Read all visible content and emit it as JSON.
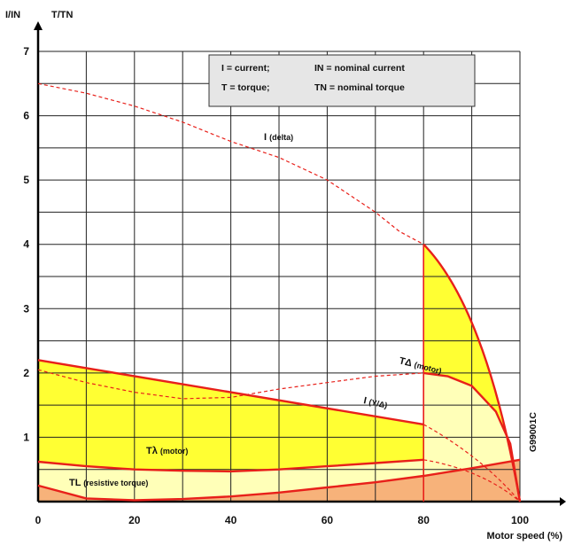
{
  "chart_data": {
    "type": "line",
    "title": "",
    "xlabel": "Motor speed (%)",
    "ylabel_left": "I/IN",
    "ylabel_right": "T/TN",
    "xlim": [
      0,
      100
    ],
    "ylim": [
      0,
      7
    ],
    "x_ticks": [
      "0",
      "20",
      "40",
      "60",
      "80",
      "100"
    ],
    "y_ticks": [
      "1",
      "2",
      "3",
      "4",
      "5",
      "6",
      "7"
    ],
    "grid": true,
    "legend": {
      "placement": "top-right",
      "entries": [
        [
          "I = current;",
          "IN = nominal current"
        ],
        [
          "T = torque;",
          "TN = nominal torque"
        ]
      ]
    },
    "side_code": "G99001C",
    "colors": {
      "motor_curve": "#e8201a",
      "current_dash": "#e8201a",
      "yellow_fill": "#ffff33",
      "pale_fill": "#ffffb8",
      "orange_fill": "#f7b27a"
    },
    "series": [
      {
        "name": "I (delta)",
        "label_main": "I",
        "label_sub": "(delta)",
        "style": "dashed",
        "x": [
          0,
          10,
          20,
          30,
          40,
          50,
          60,
          70,
          75,
          80
        ],
        "y": [
          6.5,
          6.35,
          6.15,
          5.9,
          5.6,
          5.35,
          5.0,
          4.5,
          4.2,
          4.0
        ]
      },
      {
        "name": "TΔ (motor)",
        "label_main": "TΔ",
        "label_sub": "(motor)",
        "style": "solid",
        "x": [
          80,
          85,
          90,
          95,
          98,
          100
        ],
        "y": [
          2.0,
          1.95,
          1.8,
          1.4,
          0.9,
          0.0
        ]
      },
      {
        "name": "I (Y/Δ)",
        "label_main": "I",
        "label_sub": "(Y/Δ)",
        "style": "dashed",
        "x": [
          0,
          10,
          20,
          30,
          40,
          50,
          60,
          70,
          80
        ],
        "y": [
          2.05,
          1.85,
          1.7,
          1.6,
          1.62,
          1.75,
          1.85,
          1.95,
          2.0
        ]
      },
      {
        "name": "Tλ (motor)",
        "label_main": "Tλ",
        "label_sub": "(motor)",
        "style": "solid",
        "x": [
          0,
          10,
          20,
          30,
          40,
          50,
          60,
          70,
          80
        ],
        "y": [
          0.62,
          0.55,
          0.5,
          0.48,
          0.47,
          0.5,
          0.55,
          0.6,
          0.65
        ]
      },
      {
        "name": "TL (resistive torque)",
        "label_main": "TL",
        "label_sub": "(resistive torque)",
        "style": "solid",
        "x": [
          0,
          10,
          20,
          30,
          40,
          50,
          60,
          70,
          80,
          90,
          100
        ],
        "y": [
          0.25,
          0.05,
          0.02,
          0.04,
          0.08,
          0.14,
          0.22,
          0.3,
          0.4,
          0.52,
          0.65
        ]
      }
    ]
  }
}
